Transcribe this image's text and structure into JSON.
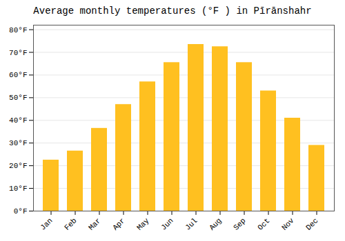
{
  "chart_data": {
    "type": "bar",
    "title": "Average monthly temperatures (°F ) in Pīrānshahr",
    "categories": [
      "Jan",
      "Feb",
      "Mar",
      "Apr",
      "May",
      "Jun",
      "Jul",
      "Aug",
      "Sep",
      "Oct",
      "Nov",
      "Dec"
    ],
    "values": [
      22.5,
      26.5,
      36.5,
      47.0,
      57.0,
      65.5,
      73.5,
      72.5,
      65.5,
      53.0,
      41.0,
      29.0
    ],
    "color": "#FFC020",
    "ylim": [
      0,
      82
    ],
    "yticks": [
      {
        "value": 0,
        "label": "0°F"
      },
      {
        "value": 10,
        "label": "10°F"
      },
      {
        "value": 20,
        "label": "20°F"
      },
      {
        "value": 30,
        "label": "30°F"
      },
      {
        "value": 40,
        "label": "40°F"
      },
      {
        "value": 50,
        "label": "50°F"
      },
      {
        "value": 60,
        "label": "60°F"
      },
      {
        "value": 70,
        "label": "70°F"
      },
      {
        "value": 80,
        "label": "80°F"
      }
    ],
    "grid": true
  }
}
